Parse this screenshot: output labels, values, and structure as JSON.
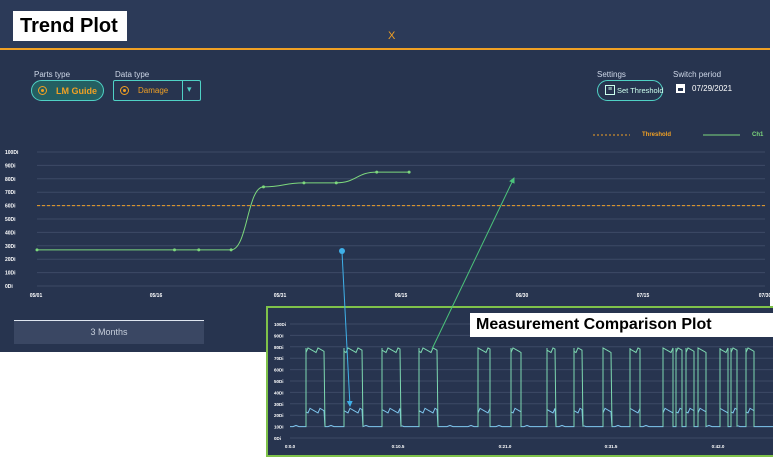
{
  "callouts": {
    "trend_plot": "Trend Plot",
    "measurement_plot": "Measurement Comparison Plot"
  },
  "window": {
    "close_glyph": "X"
  },
  "controls": {
    "parts_type_label": "Parts type",
    "parts_type_value": "LM Guide",
    "data_type_label": "Data type",
    "data_type_value": "Damage",
    "settings_label": "Settings",
    "set_threshold_label": "Set Threshold",
    "switch_period_label": "Switch period",
    "switch_period_date": "07/29/2021"
  },
  "legend": {
    "threshold": "Threshold",
    "ch1": "Ch1"
  },
  "tabs": {
    "active": "3 Months"
  },
  "colors": {
    "background": "#27344f",
    "accent_orange": "#f0a024",
    "teal": "#4fd1c5",
    "series_green": "#7dd87d",
    "series_blue": "#7ec6ee",
    "callout_frame": "#7fc24a"
  },
  "chart_data": [
    {
      "type": "line",
      "ylabels": [
        "100Di",
        "90Di",
        "80Di",
        "70Di",
        "60Di",
        "50Di",
        "40Di",
        "30Di",
        "20Di",
        "10Di",
        "0Di"
      ],
      "xlabels": [
        "05/01",
        "05/16",
        "05/31",
        "06/15",
        "06/30",
        "07/15",
        "07/30"
      ],
      "ylim": [
        0,
        100
      ],
      "threshold": 60,
      "series": [
        {
          "name": "Ch1",
          "points": [
            [
              0,
              27
            ],
            [
              17,
              27
            ],
            [
              20,
              27
            ],
            [
              24,
              27
            ],
            [
              28,
              74
            ],
            [
              33,
              77
            ],
            [
              37,
              77
            ],
            [
              42,
              85
            ],
            [
              46,
              85
            ]
          ]
        }
      ]
    },
    {
      "type": "line",
      "ylabels": [
        "100Di",
        "90Di",
        "80Di",
        "70Di",
        "60Di",
        "50Di",
        "40Di",
        "30Di",
        "20Di",
        "10Di",
        "0Di"
      ],
      "xlabels": [
        "0:0.0",
        "0:10.5",
        "0:21.0",
        "0:31.5",
        "0:42.0"
      ],
      "ylim": [
        0,
        100
      ]
    }
  ]
}
